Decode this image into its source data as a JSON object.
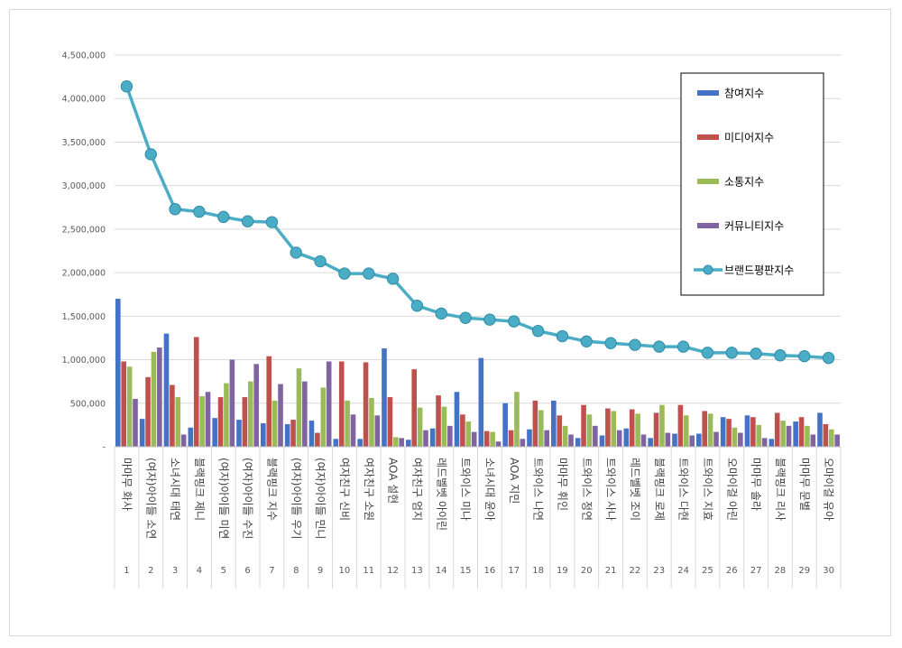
{
  "chart_data": {
    "type": "bar+line",
    "title": "",
    "xlabel": "",
    "ylabel": "",
    "ylim": [
      0,
      4500000
    ],
    "yticks": [
      0,
      500000,
      1000000,
      1500000,
      2000000,
      2500000,
      3000000,
      3500000,
      4000000,
      4500000
    ],
    "ytick_labels": [
      "-",
      "500,000",
      "1,000,000",
      "1,500,000",
      "2,000,000",
      "2,500,000",
      "3,000,000",
      "3,500,000",
      "4,000,000",
      "4,500,000"
    ],
    "grid": "horizontal",
    "legend_position": "top-right",
    "ranks": [
      "1",
      "2",
      "3",
      "4",
      "5",
      "6",
      "7",
      "8",
      "9",
      "10",
      "11",
      "12",
      "13",
      "14",
      "15",
      "16",
      "17",
      "18",
      "19",
      "20",
      "21",
      "22",
      "23",
      "24",
      "25",
      "26",
      "27",
      "28",
      "29",
      "30"
    ],
    "categories": [
      "마마무 화사",
      "(여자)아이들 소연",
      "소녀시대 태연",
      "블랙핑크 제니",
      "(여자)아이들 미연",
      "(여자)아이들 수진",
      "블랙핑크 지수",
      "(여자)아이들 우기",
      "(여자)아이들 민니",
      "여자친구 신비",
      "여자친구 소원",
      "AOA 설현",
      "여자친구 엄지",
      "레드벨벳 아이린",
      "트와이스 미나",
      "소녀시대 윤아",
      "AOA 지민",
      "트와이스 나연",
      "마마무 휘인",
      "트와이스 정연",
      "트와이스 사나",
      "레드벨벳 조이",
      "블랙핑크 로제",
      "트와이스 다현",
      "트와이스 지효",
      "오마이걸 아린",
      "마마무 솔라",
      "블랙핑크 리사",
      "마마무 문별",
      "오마이걸 유아"
    ],
    "series": [
      {
        "name": "참여지수",
        "type": "bar",
        "color": "#4472c4",
        "values": [
          1700000,
          320000,
          1300000,
          220000,
          330000,
          310000,
          270000,
          260000,
          300000,
          90000,
          90000,
          1130000,
          80000,
          210000,
          630000,
          1020000,
          500000,
          200000,
          530000,
          100000,
          130000,
          210000,
          100000,
          150000,
          150000,
          340000,
          360000,
          90000,
          290000,
          390000
        ]
      },
      {
        "name": "미디어지수",
        "type": "bar",
        "color": "#c0504d",
        "values": [
          980000,
          800000,
          710000,
          1260000,
          570000,
          570000,
          1040000,
          310000,
          160000,
          980000,
          970000,
          570000,
          890000,
          590000,
          370000,
          180000,
          190000,
          530000,
          360000,
          480000,
          440000,
          430000,
          390000,
          480000,
          410000,
          320000,
          340000,
          390000,
          340000,
          260000
        ]
      },
      {
        "name": "소통지수",
        "type": "bar",
        "color": "#9bbb59",
        "values": [
          920000,
          1090000,
          570000,
          580000,
          730000,
          750000,
          530000,
          900000,
          680000,
          530000,
          560000,
          110000,
          450000,
          460000,
          290000,
          170000,
          630000,
          420000,
          240000,
          370000,
          410000,
          380000,
          480000,
          360000,
          380000,
          220000,
          250000,
          300000,
          240000,
          200000
        ]
      },
      {
        "name": "커뮤니티지수",
        "type": "bar",
        "color": "#8064a2",
        "values": [
          550000,
          1140000,
          140000,
          630000,
          1000000,
          950000,
          720000,
          750000,
          980000,
          370000,
          360000,
          100000,
          190000,
          240000,
          170000,
          60000,
          90000,
          190000,
          140000,
          240000,
          190000,
          140000,
          160000,
          130000,
          170000,
          160000,
          100000,
          240000,
          140000,
          140000
        ]
      },
      {
        "name": "브랜드평판지수",
        "type": "line",
        "color": "#4bacc6",
        "values": [
          4140000,
          3360000,
          2730000,
          2700000,
          2640000,
          2590000,
          2580000,
          2230000,
          2130000,
          1990000,
          1990000,
          1930000,
          1620000,
          1530000,
          1480000,
          1460000,
          1440000,
          1330000,
          1270000,
          1210000,
          1190000,
          1170000,
          1150000,
          1150000,
          1080000,
          1080000,
          1070000,
          1050000,
          1040000,
          1020000
        ]
      }
    ]
  }
}
